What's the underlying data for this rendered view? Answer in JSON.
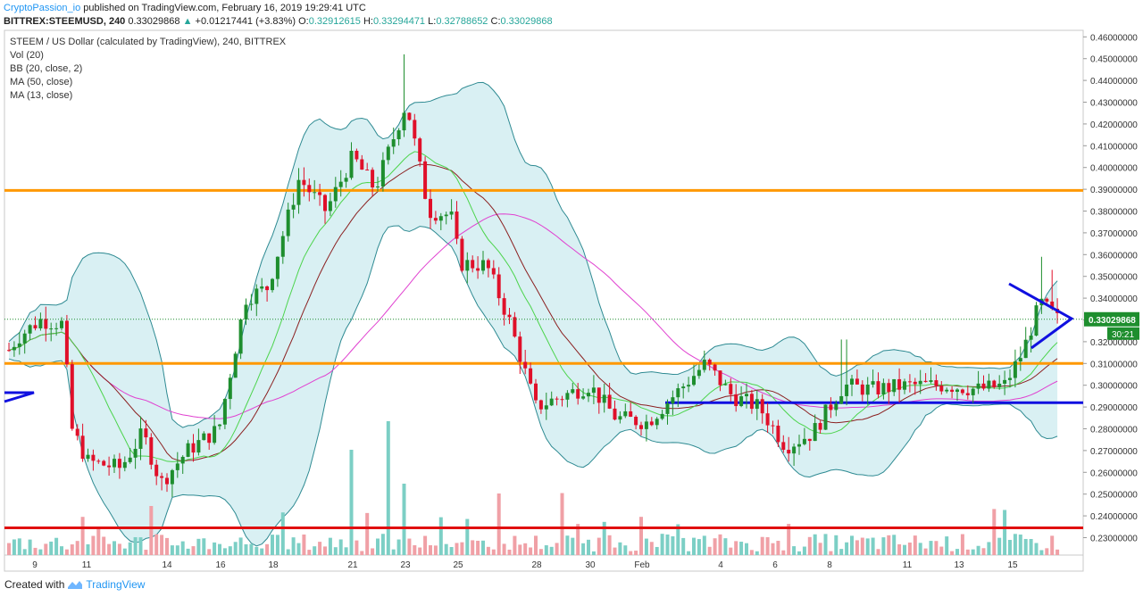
{
  "header": {
    "publisher": "CryptoPassion_io",
    "published_text": "published on TradingView.com, February 16, 2019 19:29:41 UTC",
    "symbol": "BITTREX:STEEMUSD, 240",
    "last": "0.33029868",
    "change_arrow": "▲",
    "change": "+0.01217441 (+3.83%)",
    "o_label": "O:",
    "o_value": "0.32912615",
    "h_label": "H:",
    "h_value": "0.33294471",
    "l_label": "L:",
    "l_value": "0.32788652",
    "c_label": "C:",
    "c_value": "0.33029868"
  },
  "legend": {
    "title": "STEEM / US Dollar (calculated by TradingView), 240, BITTREX",
    "vol": "Vol (20)",
    "bb": "BB (20, close, 2)",
    "ma50": "MA (50, close)",
    "ma13": "MA (13, close)"
  },
  "price_tag": "0.33029868",
  "countdown_tag": "30:21",
  "footer": {
    "created": "Created with",
    "brand": "TradingView"
  },
  "colors": {
    "up": "#26a69a",
    "down": "#ef5350",
    "candle_up": "#1e8e2e",
    "candle_down": "#e0102a",
    "bb_fill": "#d9f0f3",
    "bb_line": "#2e8a92",
    "ma13": "#4cd44c",
    "ma50": "#8b2020",
    "ma_pink": "#e040d0",
    "orange_line": "#ff9800",
    "red_line": "#e01010",
    "blue_line": "#1010e0",
    "price_tag_bg": "#1e8e2e"
  },
  "chart_data": {
    "type": "candlestick",
    "symbol": "BITTREX:STEEMUSD",
    "interval": "240",
    "ylim": [
      0.222,
      0.463
    ],
    "y_ticks": [
      "0.46000000",
      "0.45000000",
      "0.44000000",
      "0.43000000",
      "0.42000000",
      "0.41000000",
      "0.40000000",
      "0.39000000",
      "0.38000000",
      "0.37000000",
      "0.36000000",
      "0.35000000",
      "0.34000000",
      "0.33000000",
      "0.32000000",
      "0.31000000",
      "0.30000000",
      "0.29000000",
      "0.28000000",
      "0.27000000",
      "0.26000000",
      "0.25000000",
      "0.24000000",
      "0.23000000"
    ],
    "x_ticks": [
      "9",
      "11",
      "14",
      "16",
      "18",
      "21",
      "23",
      "25",
      "28",
      "30",
      "Feb",
      "4",
      "6",
      "8",
      "11",
      "13",
      "15"
    ],
    "key_points": [
      {
        "x": "8",
        "y": 0.315
      },
      {
        "x": "9",
        "y": 0.32
      },
      {
        "x": "10",
        "y": 0.328
      },
      {
        "x": "10.5",
        "y": 0.282
      },
      {
        "x": "11",
        "y": 0.265
      },
      {
        "x": "12",
        "y": 0.262
      },
      {
        "x": "13",
        "y": 0.278
      },
      {
        "x": "14",
        "y": 0.255
      },
      {
        "x": "15",
        "y": 0.27
      },
      {
        "x": "16",
        "y": 0.295
      },
      {
        "x": "17",
        "y": 0.34
      },
      {
        "x": "18",
        "y": 0.345
      },
      {
        "x": "18.7",
        "y": 0.395
      },
      {
        "x": "20",
        "y": 0.38
      },
      {
        "x": "21",
        "y": 0.405
      },
      {
        "x": "22",
        "y": 0.39
      },
      {
        "x": "23",
        "y": 0.43
      },
      {
        "x": "24",
        "y": 0.38
      },
      {
        "x": "25",
        "y": 0.378
      },
      {
        "x": "25.3",
        "y": 0.356
      },
      {
        "x": "26",
        "y": 0.355
      },
      {
        "x": "27",
        "y": 0.33
      },
      {
        "x": "28",
        "y": 0.29
      },
      {
        "x": "29",
        "y": 0.295
      },
      {
        "x": "30",
        "y": 0.3
      },
      {
        "x": "31",
        "y": 0.285
      },
      {
        "x": "Feb 2",
        "y": 0.283
      },
      {
        "x": "3",
        "y": 0.31
      },
      {
        "x": "4",
        "y": 0.295
      },
      {
        "x": "5",
        "y": 0.29
      },
      {
        "x": "6",
        "y": 0.272
      },
      {
        "x": "7",
        "y": 0.278
      },
      {
        "x": "8",
        "y": 0.3
      },
      {
        "x": "9",
        "y": 0.298
      },
      {
        "x": "11",
        "y": 0.3
      },
      {
        "x": "12",
        "y": 0.3
      },
      {
        "x": "13",
        "y": 0.298
      },
      {
        "x": "14",
        "y": 0.3
      },
      {
        "x": "15",
        "y": 0.315
      },
      {
        "x": "15.5",
        "y": 0.338
      },
      {
        "x": "16",
        "y": 0.33
      }
    ],
    "horizontal_lines": [
      {
        "color": "orange",
        "y": 0.3895
      },
      {
        "color": "orange",
        "y": 0.31
      },
      {
        "color": "red",
        "y": 0.2345
      },
      {
        "color": "blue",
        "y": 0.292
      }
    ],
    "last_price": 0.33029868
  }
}
